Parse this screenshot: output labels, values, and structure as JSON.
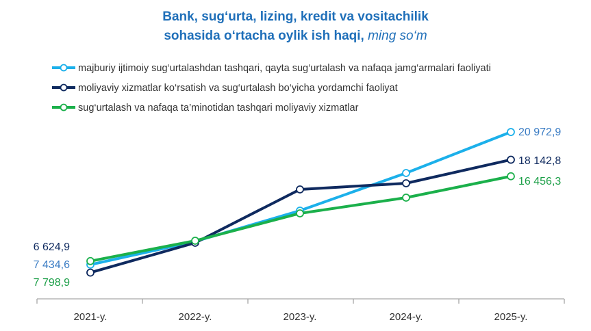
{
  "chart_data": {
    "type": "line",
    "title_line1": "Bank, sug‘urta, lizing, kredit va vositachilik",
    "title_line2": "sohasida o‘rtacha oylik ish haqi,",
    "title_unit": "ming so‘m",
    "categories": [
      "2021-y.",
      "2022-y.",
      "2023-y.",
      "2024-y.",
      "2025-y."
    ],
    "ylim": [
      3945,
      23977
    ],
    "grid": false,
    "legend_position": "top-left",
    "series": [
      {
        "name": "majburiy ijtimoiy sug‘urtalashdan tashqari, qayta sug‘urtalash va nafaqa jamg‘armalari faoliyati",
        "color": "#1cb0ea",
        "label_color": "#3a7cc4",
        "values": [
          7434.6,
          9808,
          12948,
          16788,
          20972.9
        ],
        "first_label": "7 434,6",
        "last_label": "20 972,9"
      },
      {
        "name": "moliyaviy xizmatlar ko‘rsatish va sug‘urtalash bo‘yicha yordamchi faoliyat",
        "color": "#0f2a5f",
        "label_color": "#0f2a5f",
        "values": [
          6624.9,
          9668,
          15113,
          15741,
          18142.8
        ],
        "first_label": "6 624,9",
        "last_label": "18 142,8"
      },
      {
        "name": "sug‘urtalash va nafaqa ta’minotidan tashqari moliyaviy xizmatlar",
        "color": "#1bb04b",
        "label_color": "#1a9e46",
        "values": [
          7798.9,
          9877,
          12670,
          14275,
          16456.3
        ],
        "first_label": "7 798,9",
        "last_label": "16 456,3"
      }
    ]
  }
}
